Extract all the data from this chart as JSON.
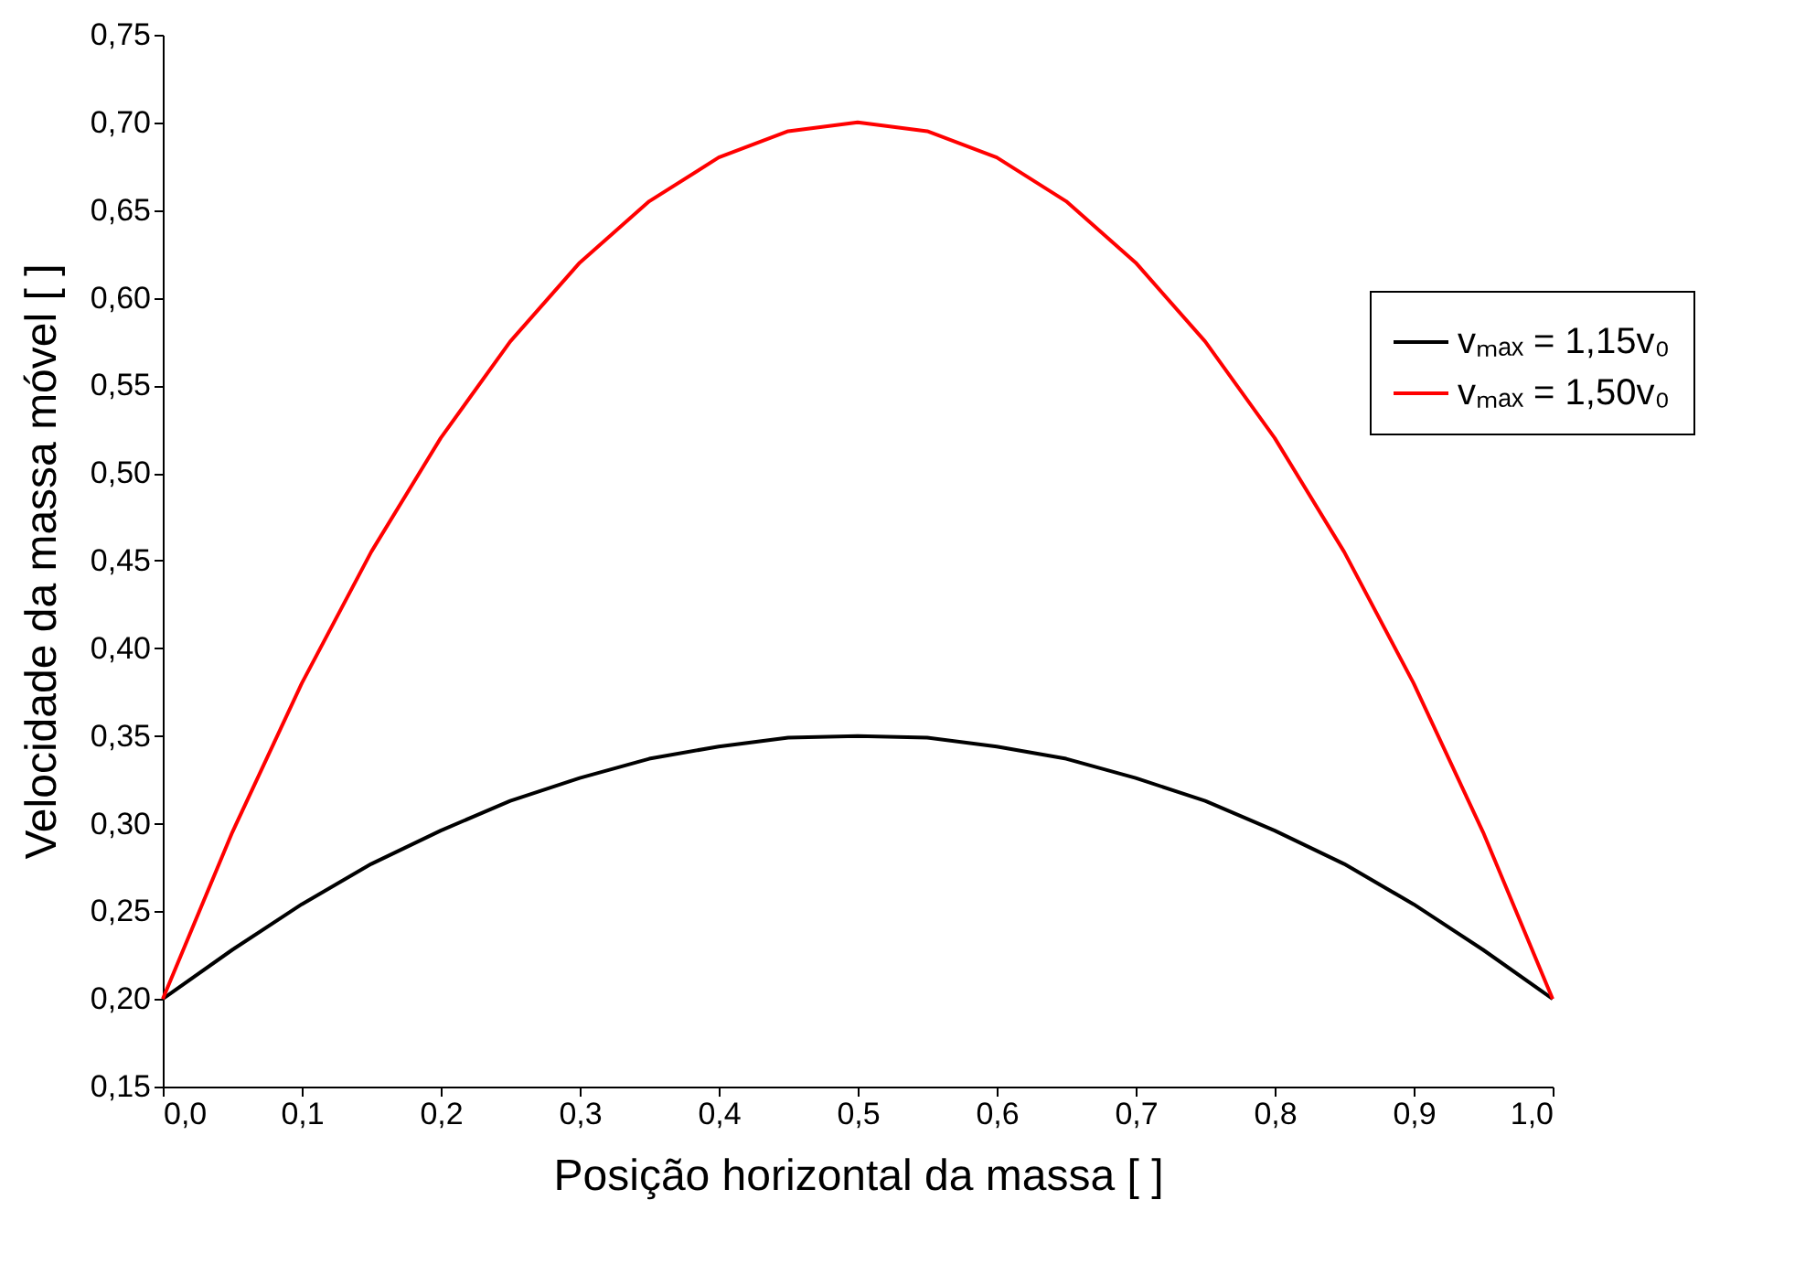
{
  "chart_data": {
    "type": "line",
    "xlabel": "Posição horizontal da massa [ ]",
    "ylabel": "Velocidade da massa móvel [ ]",
    "x": [
      0,
      0.05,
      0.1,
      0.15,
      0.2,
      0.25,
      0.3,
      0.35,
      0.4,
      0.45,
      0.5,
      0.55,
      0.6,
      0.65,
      0.7,
      0.75,
      0.8,
      0.85,
      0.9,
      0.95,
      1.0
    ],
    "series": [
      {
        "name": "vₘₐₓ = 1,15v₀",
        "color": "#000000",
        "values": [
          0.2,
          0.228,
          0.254,
          0.277,
          0.296,
          0.313,
          0.326,
          0.337,
          0.344,
          0.349,
          0.35,
          0.349,
          0.344,
          0.337,
          0.326,
          0.313,
          0.296,
          0.277,
          0.254,
          0.228,
          0.2
        ]
      },
      {
        "name": "vₘₐₓ = 1,50v₀",
        "color": "#ff0000",
        "values": [
          0.2,
          0.295,
          0.38,
          0.455,
          0.52,
          0.575,
          0.62,
          0.655,
          0.68,
          0.695,
          0.7,
          0.695,
          0.68,
          0.655,
          0.62,
          0.575,
          0.52,
          0.455,
          0.38,
          0.295,
          0.2
        ]
      }
    ],
    "xlim": [
      0,
      1.0
    ],
    "ylim": [
      0.15,
      0.75
    ],
    "xticks": [
      {
        "value": 0,
        "label": "0,0"
      },
      {
        "value": 0.1,
        "label": "0,1"
      },
      {
        "value": 0.2,
        "label": "0,2"
      },
      {
        "value": 0.3,
        "label": "0,3"
      },
      {
        "value": 0.4,
        "label": "0,4"
      },
      {
        "value": 0.5,
        "label": "0,5"
      },
      {
        "value": 0.6,
        "label": "0,6"
      },
      {
        "value": 0.7,
        "label": "0,7"
      },
      {
        "value": 0.8,
        "label": "0,8"
      },
      {
        "value": 0.9,
        "label": "0,9"
      },
      {
        "value": 1.0,
        "label": "1,0"
      }
    ],
    "yticks": [
      {
        "value": 0.15,
        "label": "0,15"
      },
      {
        "value": 0.2,
        "label": "0,20"
      },
      {
        "value": 0.25,
        "label": "0,25"
      },
      {
        "value": 0.3,
        "label": "0,30"
      },
      {
        "value": 0.35,
        "label": "0,35"
      },
      {
        "value": 0.4,
        "label": "0,40"
      },
      {
        "value": 0.45,
        "label": "0,45"
      },
      {
        "value": 0.5,
        "label": "0,50"
      },
      {
        "value": 0.55,
        "label": "0,55"
      },
      {
        "value": 0.6,
        "label": "0,60"
      },
      {
        "value": 0.65,
        "label": "0,65"
      },
      {
        "value": 0.7,
        "label": "0,70"
      },
      {
        "value": 0.75,
        "label": "0,75"
      }
    ],
    "legend": "top right",
    "grid": false,
    "marker": "none",
    "line_style": "solid"
  }
}
